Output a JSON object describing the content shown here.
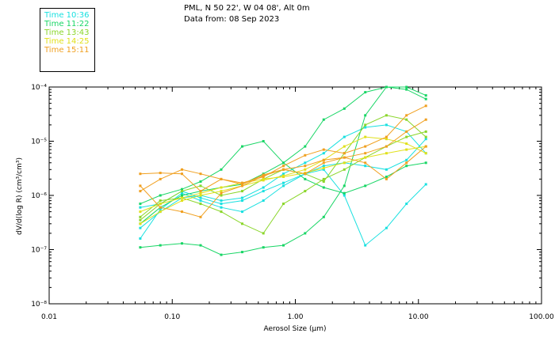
{
  "header": {
    "location": "PML, N 50 22', W 04 08', Alt 0m",
    "date": "Data from: 08 Sep 2023"
  },
  "legend": [
    {
      "label": "Time 10:36",
      "color": "#19e0e0"
    },
    {
      "label": "Time 11:22",
      "color": "#19d666"
    },
    {
      "label": "Time 13:43",
      "color": "#8ad62a"
    },
    {
      "label": "Time 14:25",
      "color": "#e0e01a"
    },
    {
      "label": "Time 15:11",
      "color": "#f0a020"
    }
  ],
  "chart_data": {
    "type": "line",
    "xlabel": "Aerosol Size (µm)",
    "ylabel": "dV/d(log R) (cm³/cm³)",
    "xscale": "log",
    "yscale": "log",
    "xlim": [
      0.01,
      100
    ],
    "ylim": [
      1e-08,
      0.0001
    ],
    "xticks": [
      {
        "value": 0.01,
        "label": "0.01"
      },
      {
        "value": 0.1,
        "label": "0.10"
      },
      {
        "value": 1,
        "label": "1.00"
      },
      {
        "value": 10,
        "label": "10.00"
      },
      {
        "value": 100,
        "label": "100.00"
      }
    ],
    "yticks": [
      {
        "value": 1e-08,
        "label": "10⁻⁸"
      },
      {
        "value": 1e-07,
        "label": "10⁻⁷"
      },
      {
        "value": 1e-06,
        "label": "10⁻⁶"
      },
      {
        "value": 1e-05,
        "label": "10⁻⁵"
      },
      {
        "value": 0.0001,
        "label": "10⁻⁴"
      }
    ],
    "x": [
      0.055,
      0.08,
      0.12,
      0.17,
      0.25,
      0.37,
      0.55,
      0.8,
      1.2,
      1.7,
      2.5,
      3.7,
      5.5,
      8.0,
      11.5
    ],
    "series": [
      {
        "name": "Time 10:36",
        "color": "#19e0e0",
        "values": [
          1.6e-07,
          5.5e-07,
          1.1e-06,
          8e-07,
          6e-07,
          5e-07,
          8e-07,
          1.5e-06,
          2.5e-06,
          3e-06,
          1e-06,
          1.2e-07,
          2.5e-07,
          7e-07,
          1.6e-06
        ]
      },
      {
        "name": "Time 10:36",
        "color": "#19e0e0",
        "values": [
          2.5e-07,
          5e-07,
          9e-07,
          1e-06,
          8e-07,
          9e-07,
          1.4e-06,
          2.5e-06,
          4e-06,
          6e-06,
          1.2e-05,
          1.8e-05,
          2e-05,
          1.5e-05,
          6e-06
        ]
      },
      {
        "name": "Time 10:36",
        "color": "#19e0e0",
        "values": [
          6e-07,
          7e-07,
          1.2e-06,
          9e-07,
          7e-07,
          8e-07,
          1.2e-06,
          1.7e-06,
          2.5e-06,
          3.5e-06,
          4e-06,
          3.5e-06,
          3e-06,
          4.5e-06,
          1.1e-05
        ]
      },
      {
        "name": "Time 11:22",
        "color": "#19d666",
        "values": [
          1.1e-07,
          1.2e-07,
          1.3e-07,
          1.2e-07,
          8e-08,
          9e-08,
          1.1e-07,
          1.2e-07,
          2e-07,
          4e-07,
          1.5e-06,
          3e-05,
          0.0001,
          0.0001,
          7e-05
        ]
      },
      {
        "name": "Time 11:22",
        "color": "#19d666",
        "values": [
          7e-07,
          1e-06,
          1.3e-06,
          1.8e-06,
          3e-06,
          8e-06,
          1e-05,
          4e-06,
          2e-06,
          1.4e-06,
          1.1e-06,
          1.5e-06,
          2.2e-06,
          3.5e-06,
          4e-06
        ]
      },
      {
        "name": "Time 11:22",
        "color": "#19d666",
        "values": [
          3e-07,
          6e-07,
          1e-06,
          1.2e-06,
          1.4e-06,
          1.6e-06,
          2.5e-06,
          4e-06,
          8e-06,
          2.5e-05,
          4e-05,
          8e-05,
          0.0001,
          9e-05,
          6e-05
        ]
      },
      {
        "name": "Time 13:43",
        "color": "#8ad62a",
        "values": [
          3.5e-07,
          7e-07,
          1.2e-06,
          1.5e-06,
          1e-06,
          1.2e-06,
          2e-06,
          3e-06,
          2.5e-06,
          1.8e-06,
          6e-06,
          2e-05,
          3e-05,
          2.5e-05,
          1.2e-05
        ]
      },
      {
        "name": "Time 13:43",
        "color": "#8ad62a",
        "values": [
          4e-07,
          8e-07,
          9e-07,
          7e-07,
          5e-07,
          3e-07,
          2e-07,
          7e-07,
          1.2e-06,
          2e-06,
          3e-06,
          5e-06,
          8e-06,
          1.2e-05,
          1.5e-05
        ]
      },
      {
        "name": "Time 14:25",
        "color": "#e0e01a",
        "values": [
          5e-07,
          7e-07,
          9e-07,
          1.1e-06,
          1.4e-06,
          1.7e-06,
          2e-06,
          2.2e-06,
          2.6e-06,
          3.2e-06,
          4e-06,
          5e-06,
          6e-06,
          7e-06,
          8e-06
        ]
      },
      {
        "name": "Time 14:25",
        "color": "#e0e01a",
        "values": [
          3e-07,
          5e-07,
          8e-07,
          1e-06,
          1.2e-06,
          1.5e-06,
          1.9e-06,
          2.3e-06,
          3e-06,
          4.5e-06,
          8e-06,
          1.2e-05,
          1.1e-05,
          9e-06,
          6e-06
        ]
      },
      {
        "name": "Time 15:11",
        "color": "#f0a020",
        "values": [
          2.5e-06,
          2.6e-06,
          2.5e-06,
          1.2e-06,
          2e-06,
          1.7e-06,
          2.2e-06,
          3.5e-06,
          5.5e-06,
          7e-06,
          6e-06,
          8e-06,
          1.2e-05,
          3e-05,
          4.5e-05
        ]
      },
      {
        "name": "Time 15:11",
        "color": "#f0a020",
        "values": [
          1.5e-06,
          6e-07,
          5e-07,
          4e-07,
          1.1e-06,
          1.5e-06,
          2.3e-06,
          3e-06,
          2.5e-06,
          4e-06,
          5e-06,
          4e-06,
          2e-06,
          4e-06,
          8e-06
        ]
      },
      {
        "name": "Time 15:11",
        "color": "#f0a020",
        "values": [
          1.2e-06,
          2e-06,
          3e-06,
          2.5e-06,
          2e-06,
          1.6e-06,
          2.4e-06,
          3e-06,
          3.5e-06,
          4.5e-06,
          5e-06,
          6e-06,
          8e-06,
          1.5e-05,
          2.5e-05
        ]
      }
    ]
  }
}
